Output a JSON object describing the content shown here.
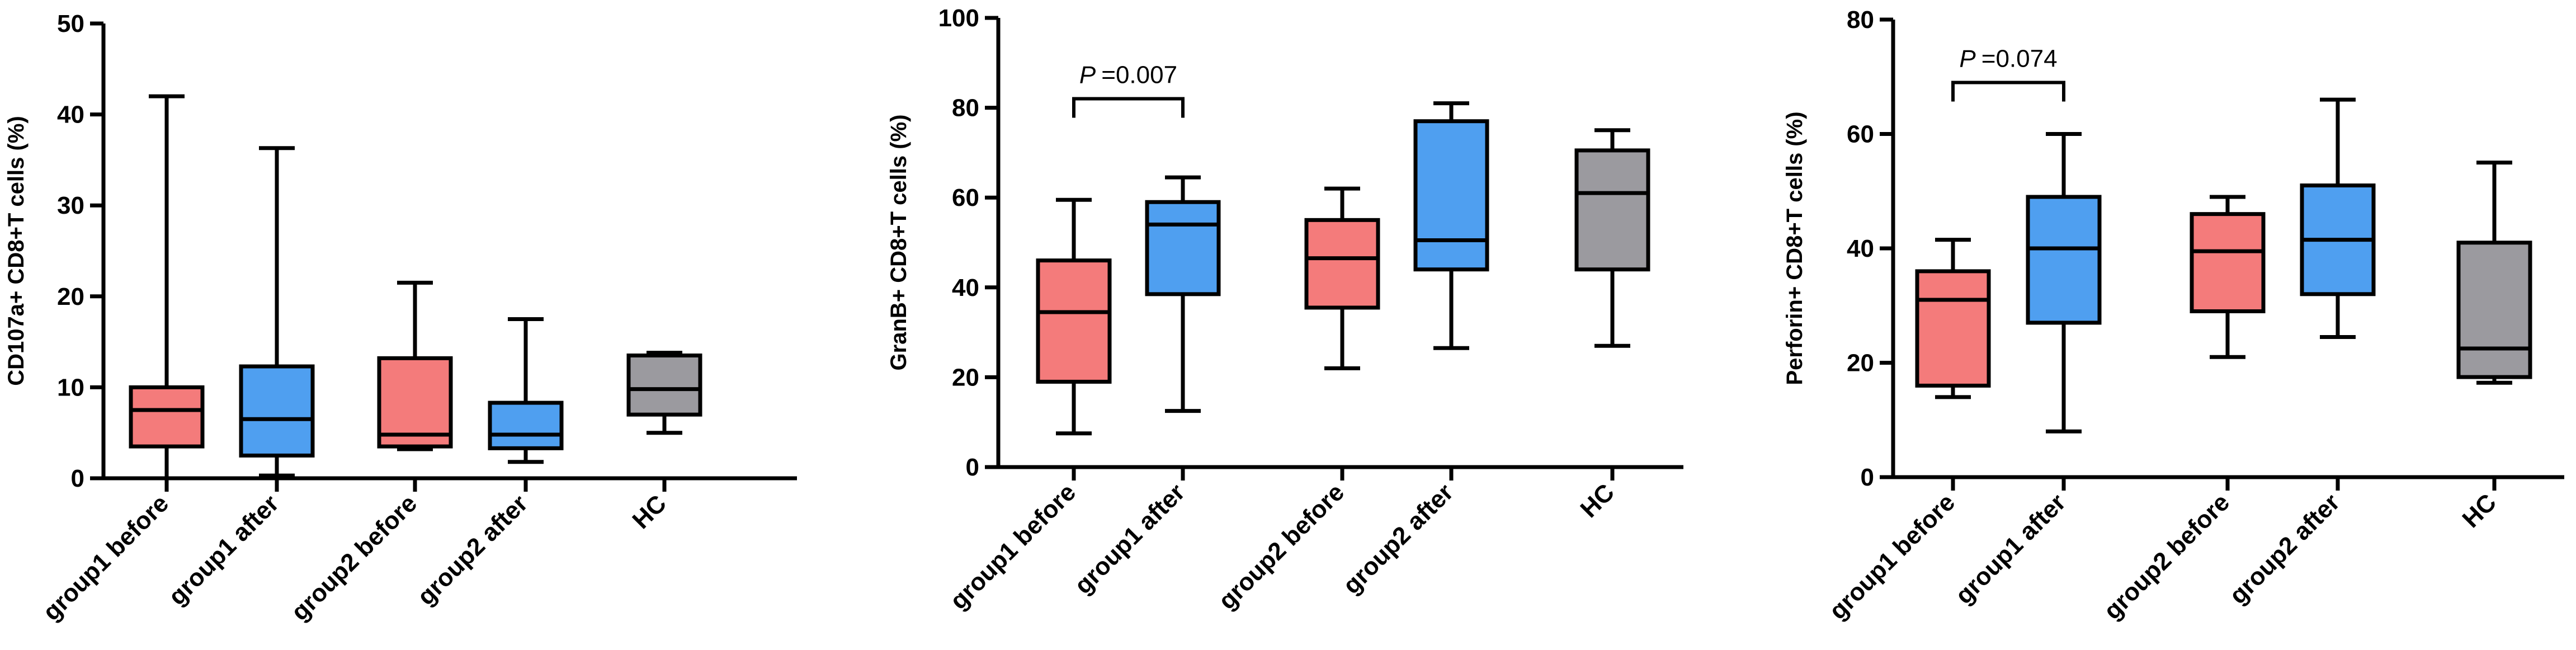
{
  "chart_data": [
    {
      "type": "boxplot",
      "title": "",
      "ylabel": "CD107a+ CD8+T cells (%)",
      "ylim": [
        0,
        50
      ],
      "yticks": [
        0,
        10,
        20,
        30,
        40,
        50
      ],
      "categories": [
        "group1 before",
        "group1 after",
        "group2 before",
        "group2 after",
        "HC"
      ],
      "boxes": [
        {
          "category": "group1 before",
          "min": 0,
          "q1": 3.5,
          "median": 7.5,
          "q3": 10,
          "max": 42,
          "color": "#f47b7b"
        },
        {
          "category": "group1 after",
          "min": 0.3,
          "q1": 2.5,
          "median": 6.5,
          "q3": 12.3,
          "max": 36.3,
          "color": "#4f9ff0"
        },
        {
          "category": "group2 before",
          "min": 3.2,
          "q1": 3.5,
          "median": 4.8,
          "q3": 13.2,
          "max": 21.5,
          "color": "#f47b7b"
        },
        {
          "category": "group2 after",
          "min": 1.8,
          "q1": 3.3,
          "median": 4.8,
          "q3": 8.3,
          "max": 17.5,
          "color": "#4f9ff0"
        },
        {
          "category": "HC",
          "min": 5,
          "q1": 7,
          "median": 9.8,
          "q3": 13.5,
          "max": 13.8,
          "color": "#9b9a9f"
        }
      ],
      "annotations": []
    },
    {
      "type": "boxplot",
      "title": "",
      "ylabel": "GranB+ CD8+T cells (%)",
      "ylim": [
        0,
        100
      ],
      "yticks": [
        0,
        20,
        40,
        60,
        80,
        100
      ],
      "categories": [
        "group1 before",
        "group1 after",
        "group2 before",
        "group2 after",
        "HC"
      ],
      "boxes": [
        {
          "category": "group1 before",
          "min": 7.5,
          "q1": 19,
          "median": 34.5,
          "q3": 46,
          "max": 59.5,
          "color": "#f47b7b"
        },
        {
          "category": "group1 after",
          "min": 12.5,
          "q1": 38.5,
          "median": 54,
          "q3": 59,
          "max": 64.5,
          "color": "#4f9ff0"
        },
        {
          "category": "group2 before",
          "min": 22,
          "q1": 35.5,
          "median": 46.5,
          "q3": 55,
          "max": 62,
          "color": "#f47b7b"
        },
        {
          "category": "group2 after",
          "min": 26.5,
          "q1": 44,
          "median": 50.5,
          "q3": 77,
          "max": 81,
          "color": "#4f9ff0"
        },
        {
          "category": "HC",
          "min": 27,
          "q1": 44,
          "median": 61,
          "q3": 70.5,
          "max": 75,
          "color": "#9b9a9f"
        }
      ],
      "annotations": [
        {
          "from": "group1 before",
          "to": "group1 after",
          "p_symbol": "P",
          "p_text": "=0.007",
          "y": 82
        }
      ]
    },
    {
      "type": "boxplot",
      "title": "",
      "ylabel": "Perforin+ CD8+T cells (%)",
      "ylim": [
        0,
        80
      ],
      "yticks": [
        0,
        20,
        40,
        60,
        80
      ],
      "categories": [
        "group1 before",
        "group1 after",
        "group2 before",
        "group2 after",
        "HC"
      ],
      "boxes": [
        {
          "category": "group1 before",
          "min": 14,
          "q1": 16,
          "median": 31,
          "q3": 36,
          "max": 41.5,
          "color": "#f47b7b"
        },
        {
          "category": "group1 after",
          "min": 8,
          "q1": 27,
          "median": 40,
          "q3": 49,
          "max": 60,
          "color": "#4f9ff0"
        },
        {
          "category": "group2 before",
          "min": 21,
          "q1": 29,
          "median": 39.5,
          "q3": 46,
          "max": 49,
          "color": "#f47b7b"
        },
        {
          "category": "group2 after",
          "min": 24.5,
          "q1": 32,
          "median": 41.5,
          "q3": 51,
          "max": 66,
          "color": "#4f9ff0"
        },
        {
          "category": "HC",
          "min": 16.5,
          "q1": 17.5,
          "median": 22.5,
          "q3": 41,
          "max": 55,
          "color": "#9b9a9f"
        }
      ],
      "annotations": [
        {
          "from": "group1 before",
          "to": "group1 after",
          "p_symbol": "P",
          "p_text": "=0.074",
          "y": 69
        }
      ]
    }
  ]
}
